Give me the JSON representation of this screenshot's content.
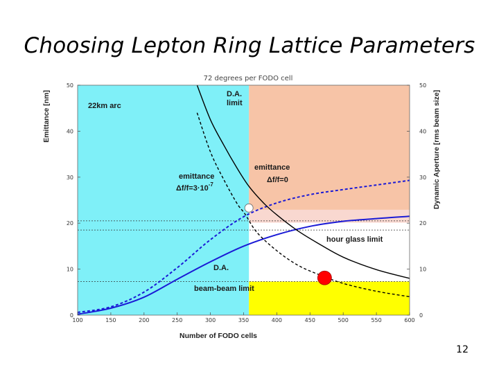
{
  "slide": {
    "title": "Choosing Lepton Ring Lattice Parameters",
    "page_number": "12"
  },
  "chart_data": {
    "type": "line",
    "title": "72 degrees per FODO cell",
    "xlabel": "Number of FODO cells",
    "ylabel_left": "Emittance [nm]",
    "ylabel_right": "Dynamic Aperture [rms beam size]",
    "xlim": [
      100,
      600
    ],
    "ylim": [
      0,
      50
    ],
    "x_ticks": [
      "100",
      "150",
      "200",
      "250",
      "300",
      "350",
      "400",
      "450",
      "500",
      "550",
      "600"
    ],
    "y_ticks": [
      "0",
      "10",
      "20",
      "30",
      "40",
      "50"
    ],
    "y_ticks_right": [
      "0",
      "10",
      "20",
      "30",
      "40",
      "50"
    ],
    "colors": {
      "cyan_region": "#7ff0f8",
      "salmon_region": "#f7c4a7",
      "pink_band": "#f9d8d0",
      "yellow_region": "#ffff00",
      "blue_curve": "#1a1ad6",
      "black_curve": "#000000"
    },
    "regions": [
      {
        "name": "22km arc",
        "x_range": [
          100,
          358
        ],
        "y_range": [
          0,
          50
        ],
        "color": "cyan"
      },
      {
        "name": "large-da",
        "x_range": [
          358,
          600
        ],
        "y_range": [
          22.9,
          50
        ],
        "color": "salmon"
      },
      {
        "name": "hour-glass",
        "x_range": [
          358,
          600
        ],
        "y_range": [
          20.1,
          22.9
        ],
        "color": "pink"
      },
      {
        "name": "beam-beam",
        "x_range": [
          358,
          600
        ],
        "y_range": [
          0,
          7.3
        ],
        "color": "yellow"
      }
    ],
    "hlines": [
      {
        "name": "hour glass limit",
        "y": 20.5
      },
      {
        "name": "hour glass limit upper",
        "y": 18.5
      },
      {
        "name": "beam-beam limit",
        "y": 7.3
      }
    ],
    "series": [
      {
        "name": "emittance Δf/f=3·10^-7",
        "style": "dashed",
        "color": "blue",
        "x": [
          100,
          150,
          200,
          250,
          300,
          350,
          400,
          450,
          500,
          550,
          600
        ],
        "y": [
          0.6,
          1.8,
          5.0,
          10.3,
          16.4,
          21.4,
          24.4,
          26.2,
          27.3,
          28.3,
          29.3
        ]
      },
      {
        "name": "emittance Δf/f=0",
        "style": "solid",
        "color": "blue",
        "x": [
          100,
          150,
          200,
          250,
          300,
          350,
          400,
          450,
          500,
          550,
          600
        ],
        "y": [
          0.2,
          1.5,
          3.9,
          7.8,
          11.6,
          15.0,
          17.5,
          19.3,
          20.4,
          21.0,
          21.5
        ]
      },
      {
        "name": "D.A. limit",
        "style": "solid",
        "color": "black",
        "x": [
          280,
          300,
          320,
          340,
          358,
          380,
          400,
          430,
          460,
          500,
          550,
          600
        ],
        "y": [
          50,
          42.5,
          37.0,
          32.0,
          28.0,
          24.4,
          21.8,
          18.5,
          15.8,
          12.6,
          9.9,
          8.0
        ]
      },
      {
        "name": "D.A.",
        "style": "dashed",
        "color": "black",
        "x": [
          280,
          300,
          320,
          340,
          352,
          370,
          400,
          430,
          460,
          500,
          550,
          600
        ],
        "y": [
          44.0,
          35.5,
          29.5,
          24.3,
          22.0,
          18.0,
          14.0,
          11.0,
          9.0,
          6.9,
          5.2,
          4.0
        ]
      }
    ],
    "markers": [
      {
        "name": "white-dot",
        "x": 358,
        "y": 23.3,
        "color": "#ffffff"
      },
      {
        "name": "red-dot",
        "x": 472,
        "y": 8.1,
        "color": "#ff0000"
      }
    ],
    "annotations": {
      "arc": "22km arc",
      "da_limit_1": "D.A.",
      "da_limit_2": "limit",
      "emit_left_1": "emittance",
      "emit_left_2": "Δf/f=3·10",
      "emit_left_exp": "-7",
      "emit_right_1": "emittance",
      "emit_right_2": "Δf/f=0",
      "hourglass": "hour glass limit",
      "da": "D.A.",
      "beambeam": "beam-beam limit"
    }
  }
}
